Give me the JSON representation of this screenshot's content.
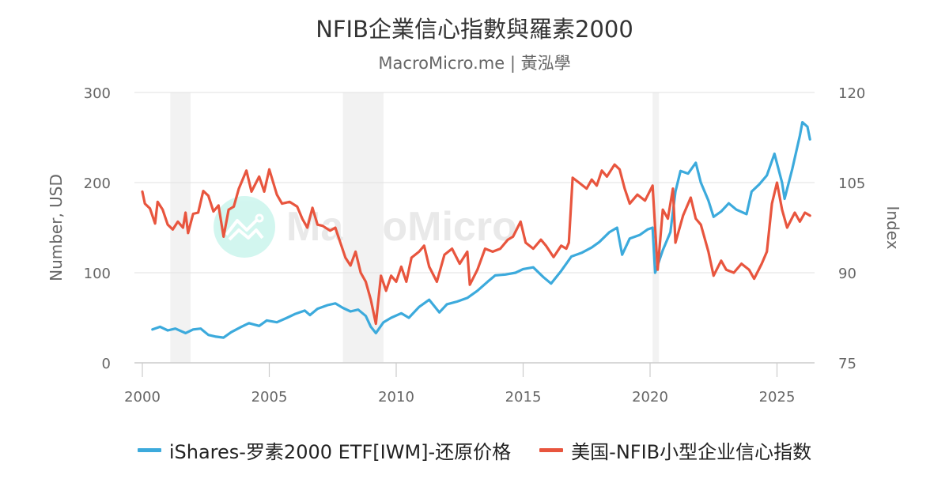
{
  "header": {
    "title": "NFIB企業信心指數與羅素2000",
    "subtitle": "MacroMicro.me | 黃泓學"
  },
  "watermark": {
    "text": "MacroMicro",
    "icon": "chart-line-icon"
  },
  "legend": {
    "items": [
      {
        "label": "iShares-罗素2000 ETF[IWM]-还原价格",
        "color": "#3caadc"
      },
      {
        "label": "美国-NFIB小型企业信心指数",
        "color": "#e8553e"
      }
    ]
  },
  "chart_data": {
    "type": "line",
    "title": "NFIB企業信心指數與羅素2000",
    "subtitle": "MacroMicro.me | 黃泓學",
    "xlabel": "",
    "x_ticks": [
      2000,
      2005,
      2010,
      2015,
      2020,
      2025
    ],
    "xlim": [
      2000,
      2026.5
    ],
    "y_left": {
      "label": "Number, USD",
      "ticks": [
        0,
        100,
        200,
        300
      ],
      "range": [
        0,
        300
      ]
    },
    "y_right": {
      "label": "Index",
      "ticks": [
        75,
        90,
        105,
        120
      ],
      "range": [
        75,
        120
      ]
    },
    "grid": true,
    "legend_position": "bottom",
    "recession_bands": [
      [
        2001.1,
        2001.9
      ],
      [
        2007.9,
        2009.5
      ],
      [
        2020.1,
        2020.35
      ]
    ],
    "series": [
      {
        "name": "iShares-罗素2000 ETF[IWM]-还原价格",
        "axis": "left",
        "color": "#3caadc",
        "points": [
          [
            2000.4,
            37
          ],
          [
            2000.7,
            40
          ],
          [
            2001.0,
            36
          ],
          [
            2001.3,
            38
          ],
          [
            2001.7,
            33
          ],
          [
            2002.0,
            37
          ],
          [
            2002.3,
            38
          ],
          [
            2002.6,
            31
          ],
          [
            2002.9,
            29
          ],
          [
            2003.2,
            28
          ],
          [
            2003.5,
            34
          ],
          [
            2003.9,
            40
          ],
          [
            2004.2,
            44
          ],
          [
            2004.6,
            41
          ],
          [
            2004.9,
            47
          ],
          [
            2005.3,
            45
          ],
          [
            2005.7,
            50
          ],
          [
            2006.0,
            54
          ],
          [
            2006.4,
            58
          ],
          [
            2006.6,
            53
          ],
          [
            2006.9,
            60
          ],
          [
            2007.3,
            64
          ],
          [
            2007.6,
            66
          ],
          [
            2007.9,
            61
          ],
          [
            2008.2,
            57
          ],
          [
            2008.5,
            59
          ],
          [
            2008.8,
            52
          ],
          [
            2009.0,
            40
          ],
          [
            2009.2,
            33
          ],
          [
            2009.5,
            45
          ],
          [
            2009.8,
            50
          ],
          [
            2010.2,
            55
          ],
          [
            2010.5,
            50
          ],
          [
            2010.9,
            62
          ],
          [
            2011.3,
            70
          ],
          [
            2011.7,
            56
          ],
          [
            2012.0,
            65
          ],
          [
            2012.4,
            68
          ],
          [
            2012.8,
            72
          ],
          [
            2013.2,
            80
          ],
          [
            2013.6,
            90
          ],
          [
            2013.9,
            97
          ],
          [
            2014.3,
            98
          ],
          [
            2014.7,
            100
          ],
          [
            2015.0,
            104
          ],
          [
            2015.4,
            106
          ],
          [
            2015.8,
            95
          ],
          [
            2016.1,
            88
          ],
          [
            2016.5,
            102
          ],
          [
            2016.9,
            118
          ],
          [
            2017.3,
            122
          ],
          [
            2017.7,
            128
          ],
          [
            2018.0,
            134
          ],
          [
            2018.4,
            145
          ],
          [
            2018.7,
            150
          ],
          [
            2018.9,
            120
          ],
          [
            2019.2,
            138
          ],
          [
            2019.6,
            142
          ],
          [
            2019.9,
            148
          ],
          [
            2020.1,
            150
          ],
          [
            2020.2,
            100
          ],
          [
            2020.5,
            125
          ],
          [
            2020.8,
            145
          ],
          [
            2021.0,
            190
          ],
          [
            2021.2,
            213
          ],
          [
            2021.5,
            210
          ],
          [
            2021.8,
            222
          ],
          [
            2022.0,
            200
          ],
          [
            2022.3,
            180
          ],
          [
            2022.5,
            162
          ],
          [
            2022.8,
            168
          ],
          [
            2023.1,
            177
          ],
          [
            2023.4,
            170
          ],
          [
            2023.8,
            165
          ],
          [
            2024.0,
            190
          ],
          [
            2024.3,
            198
          ],
          [
            2024.6,
            208
          ],
          [
            2024.9,
            232
          ],
          [
            2025.2,
            200
          ],
          [
            2025.3,
            182
          ],
          [
            2025.6,
            215
          ],
          [
            2025.9,
            252
          ],
          [
            2026.0,
            267
          ],
          [
            2026.2,
            262
          ],
          [
            2026.3,
            248
          ]
        ]
      },
      {
        "name": "美国-NFIB小型企业信心指数",
        "axis": "right",
        "color": "#e8553e",
        "points": [
          [
            2000.0,
            103.5
          ],
          [
            2000.1,
            101.5
          ],
          [
            2000.3,
            100.7
          ],
          [
            2000.5,
            98.2
          ],
          [
            2000.6,
            101.8
          ],
          [
            2000.8,
            100.5
          ],
          [
            2001.0,
            98.0
          ],
          [
            2001.2,
            97.2
          ],
          [
            2001.4,
            98.5
          ],
          [
            2001.6,
            97.5
          ],
          [
            2001.7,
            100.0
          ],
          [
            2001.8,
            96.6
          ],
          [
            2002.0,
            99.8
          ],
          [
            2002.2,
            100.0
          ],
          [
            2002.4,
            103.6
          ],
          [
            2002.6,
            102.8
          ],
          [
            2002.8,
            100.2
          ],
          [
            2003.0,
            101.2
          ],
          [
            2003.2,
            96.0
          ],
          [
            2003.4,
            100.5
          ],
          [
            2003.6,
            101.0
          ],
          [
            2003.8,
            104.0
          ],
          [
            2004.1,
            107.0
          ],
          [
            2004.3,
            103.5
          ],
          [
            2004.6,
            106.0
          ],
          [
            2004.8,
            103.5
          ],
          [
            2005.0,
            107.2
          ],
          [
            2005.3,
            103.0
          ],
          [
            2005.5,
            101.5
          ],
          [
            2005.8,
            101.8
          ],
          [
            2006.1,
            101.0
          ],
          [
            2006.3,
            99.0
          ],
          [
            2006.5,
            97.5
          ],
          [
            2006.7,
            100.8
          ],
          [
            2006.9,
            98.0
          ],
          [
            2007.1,
            97.8
          ],
          [
            2007.4,
            97.0
          ],
          [
            2007.6,
            97.5
          ],
          [
            2007.8,
            95.0
          ],
          [
            2008.0,
            92.5
          ],
          [
            2008.2,
            91.2
          ],
          [
            2008.4,
            93.5
          ],
          [
            2008.6,
            90.0
          ],
          [
            2008.8,
            88.5
          ],
          [
            2009.0,
            85.5
          ],
          [
            2009.2,
            81.5
          ],
          [
            2009.4,
            89.5
          ],
          [
            2009.6,
            87.0
          ],
          [
            2009.8,
            89.5
          ],
          [
            2010.0,
            88.5
          ],
          [
            2010.2,
            91.0
          ],
          [
            2010.4,
            88.5
          ],
          [
            2010.6,
            92.5
          ],
          [
            2010.9,
            93.5
          ],
          [
            2011.1,
            94.5
          ],
          [
            2011.3,
            91.0
          ],
          [
            2011.6,
            88.5
          ],
          [
            2011.9,
            93.0
          ],
          [
            2012.2,
            94.0
          ],
          [
            2012.5,
            91.5
          ],
          [
            2012.8,
            93.5
          ],
          [
            2012.9,
            88.0
          ],
          [
            2013.2,
            90.5
          ],
          [
            2013.5,
            94.0
          ],
          [
            2013.8,
            93.5
          ],
          [
            2014.1,
            94.0
          ],
          [
            2014.4,
            95.5
          ],
          [
            2014.6,
            96.0
          ],
          [
            2014.9,
            98.5
          ],
          [
            2015.1,
            95.0
          ],
          [
            2015.4,
            94.0
          ],
          [
            2015.7,
            95.5
          ],
          [
            2015.9,
            94.5
          ],
          [
            2016.2,
            92.6
          ],
          [
            2016.5,
            94.5
          ],
          [
            2016.7,
            94.0
          ],
          [
            2016.8,
            95.0
          ],
          [
            2016.95,
            105.8
          ],
          [
            2017.2,
            105.0
          ],
          [
            2017.5,
            104.0
          ],
          [
            2017.7,
            105.5
          ],
          [
            2017.9,
            104.5
          ],
          [
            2018.1,
            107.0
          ],
          [
            2018.3,
            106.0
          ],
          [
            2018.6,
            108.0
          ],
          [
            2018.8,
            107.2
          ],
          [
            2019.0,
            104.0
          ],
          [
            2019.2,
            101.5
          ],
          [
            2019.5,
            103.0
          ],
          [
            2019.8,
            102.0
          ],
          [
            2020.1,
            104.5
          ],
          [
            2020.3,
            90.5
          ],
          [
            2020.5,
            100.5
          ],
          [
            2020.7,
            99.0
          ],
          [
            2020.9,
            104.0
          ],
          [
            2021.0,
            95.0
          ],
          [
            2021.3,
            99.5
          ],
          [
            2021.6,
            102.5
          ],
          [
            2021.8,
            99.0
          ],
          [
            2022.0,
            98.0
          ],
          [
            2022.3,
            93.5
          ],
          [
            2022.5,
            89.5
          ],
          [
            2022.8,
            92.0
          ],
          [
            2023.0,
            90.5
          ],
          [
            2023.3,
            90.0
          ],
          [
            2023.6,
            91.5
          ],
          [
            2023.9,
            90.5
          ],
          [
            2024.1,
            89.0
          ],
          [
            2024.4,
            91.5
          ],
          [
            2024.6,
            93.5
          ],
          [
            2024.8,
            101.5
          ],
          [
            2025.0,
            105.0
          ],
          [
            2025.2,
            100.5
          ],
          [
            2025.4,
            97.5
          ],
          [
            2025.7,
            100.0
          ],
          [
            2025.9,
            98.5
          ],
          [
            2026.1,
            100.0
          ],
          [
            2026.3,
            99.5
          ]
        ]
      }
    ]
  }
}
